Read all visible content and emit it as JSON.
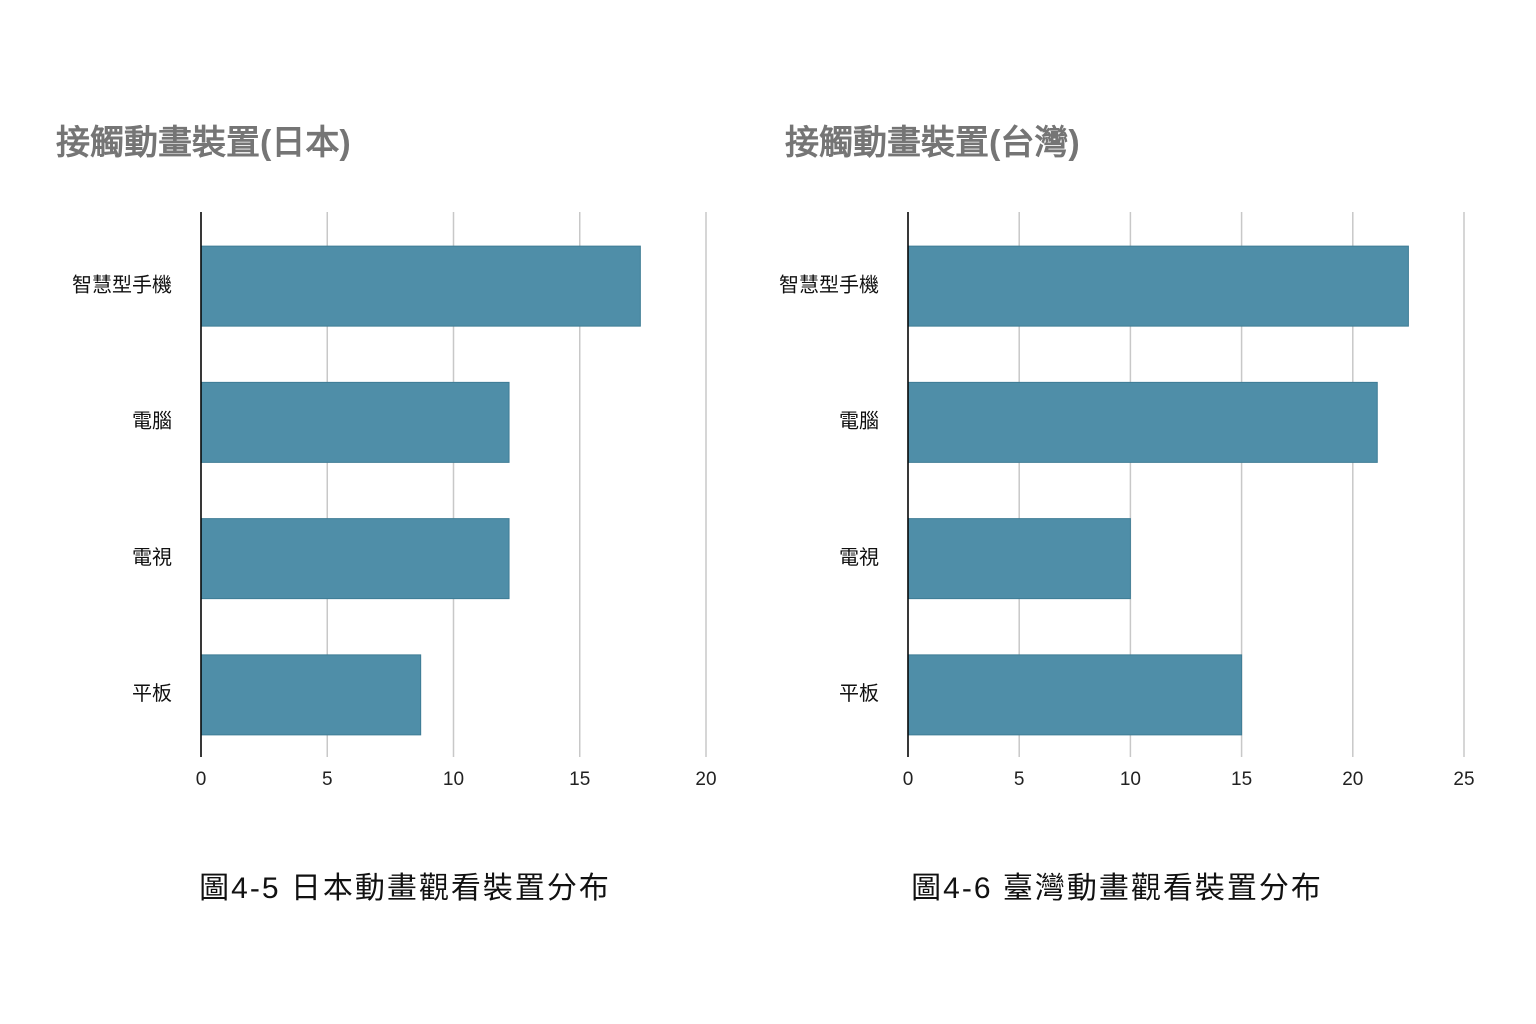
{
  "chart_data": [
    {
      "type": "bar",
      "orientation": "horizontal",
      "title": "接觸動畫裝置(日本)",
      "categories": [
        "智慧型手機",
        "電腦",
        "電視",
        "平板"
      ],
      "values": [
        17.4,
        12.2,
        12.2,
        8.7
      ],
      "color": "#4f8ea8",
      "xlim": [
        0,
        20
      ],
      "xticks": [
        0,
        5,
        10,
        15,
        20
      ],
      "grid": true,
      "caption": "圖4-5 日本動畫觀看裝置分布"
    },
    {
      "type": "bar",
      "orientation": "horizontal",
      "title": "接觸動畫裝置(台灣)",
      "categories": [
        "智慧型手機",
        "電腦",
        "電視",
        "平板"
      ],
      "values": [
        22.5,
        21.1,
        10,
        15
      ],
      "color": "#4f8ea8",
      "xlim": [
        0,
        25
      ],
      "xticks": [
        0,
        5,
        10,
        15,
        20,
        25
      ],
      "grid": true,
      "caption": "圖4-6 臺灣動畫觀看裝置分布"
    }
  ]
}
